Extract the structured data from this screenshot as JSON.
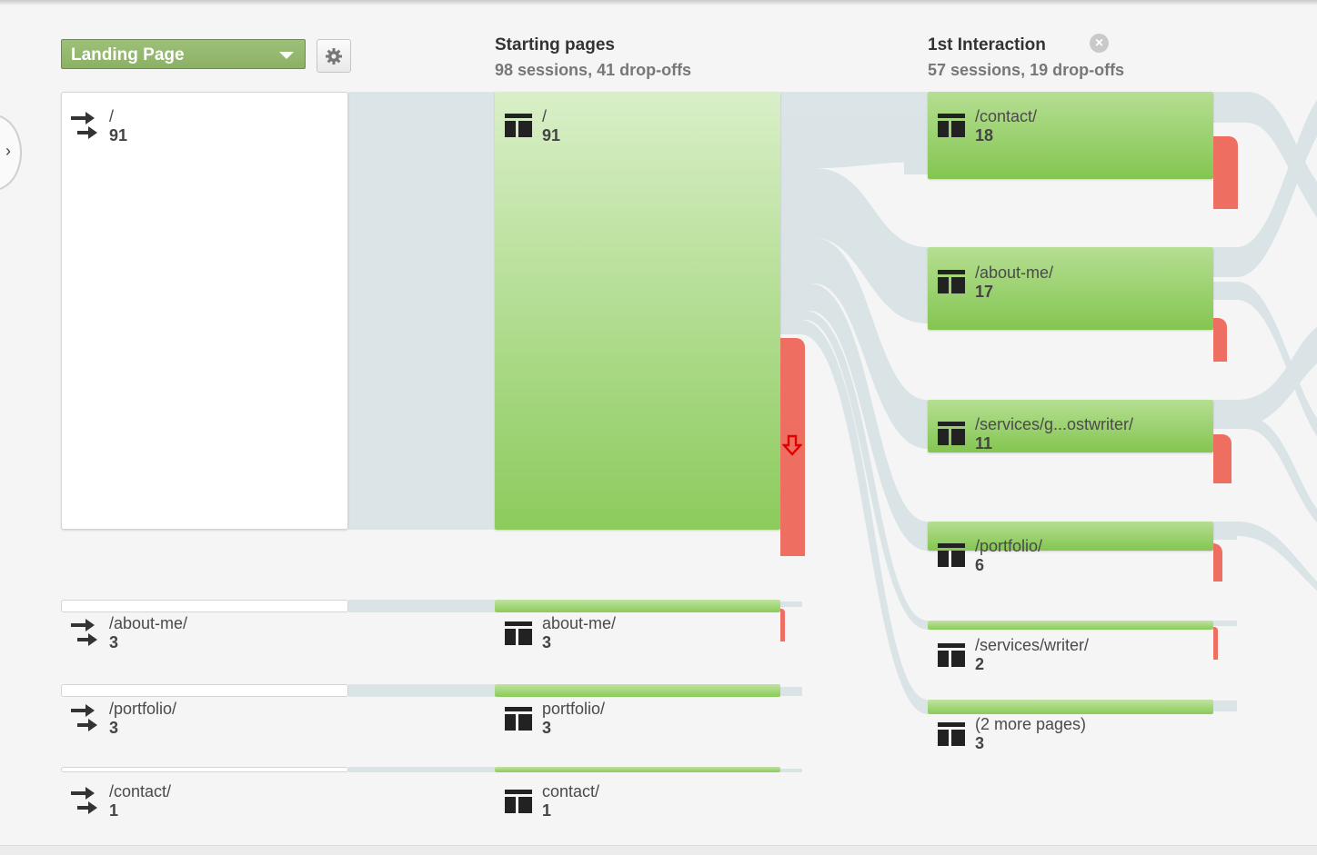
{
  "dimension_select": {
    "label": "Landing Page"
  },
  "columns": {
    "landing": {
      "nodes": [
        {
          "path": "/",
          "sessions": "91"
        },
        {
          "path": "/about-me/",
          "sessions": "3"
        },
        {
          "path": "/portfolio/",
          "sessions": "3"
        },
        {
          "path": "/contact/",
          "sessions": "1"
        }
      ]
    },
    "starting": {
      "title": "Starting pages",
      "subtitle": "98 sessions, 41 drop-offs",
      "nodes": [
        {
          "path": "/",
          "sessions": "91"
        },
        {
          "path": "about-me/",
          "sessions": "3"
        },
        {
          "path": "portfolio/",
          "sessions": "3"
        },
        {
          "path": "contact/",
          "sessions": "1"
        }
      ]
    },
    "first_interaction": {
      "title": "1st Interaction",
      "subtitle": "57 sessions, 19 drop-offs",
      "nodes": [
        {
          "path": "/contact/",
          "sessions": "18"
        },
        {
          "path": "/about-me/",
          "sessions": "17"
        },
        {
          "path": "/services/g...ostwriter/",
          "sessions": "11"
        },
        {
          "path": "/portfolio/",
          "sessions": "6"
        },
        {
          "path": "/services/writer/",
          "sessions": "2"
        },
        {
          "path": "(2 more pages)",
          "sessions": "3"
        }
      ]
    }
  },
  "icons": {
    "landing": "landing-arrows-icon",
    "page": "page-layout-icon",
    "dropoff": "dropoff-arrow-icon",
    "settings": "gear-icon",
    "close": "close-icon"
  },
  "colors": {
    "node_green": "#8ccb5c",
    "dropoff_red": "#ee6f61",
    "flow_gray": "#d6e1e4",
    "select_green": "#8bb165"
  }
}
